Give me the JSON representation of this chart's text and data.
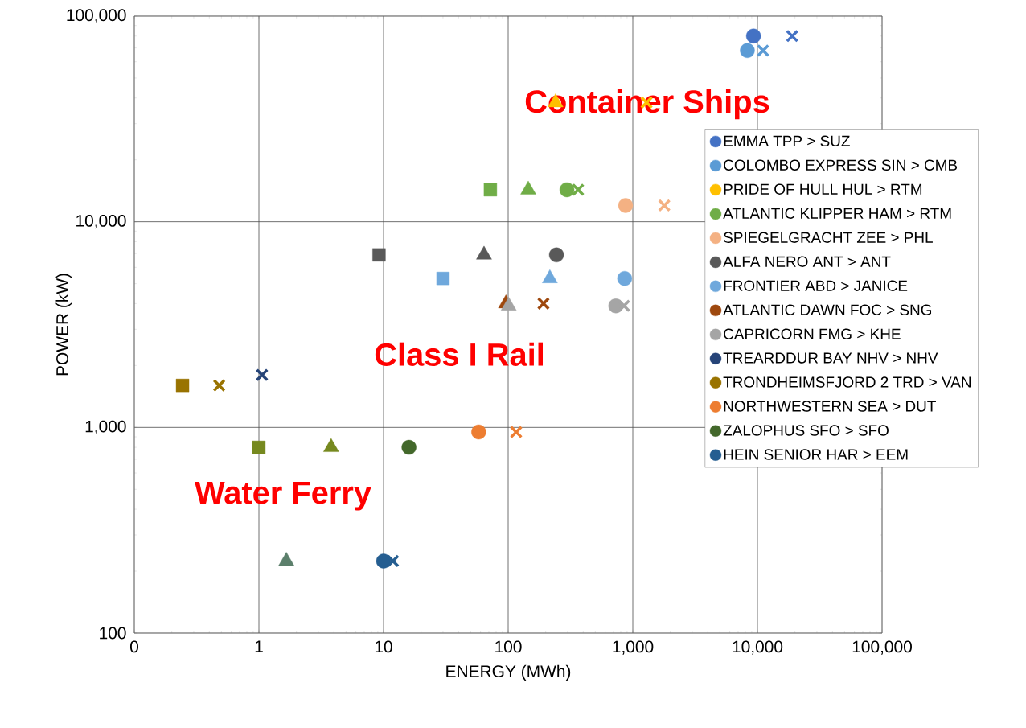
{
  "chart_data": {
    "type": "scatter",
    "xlabel": "ENERGY (MWh)",
    "ylabel": "POWER (kW)",
    "log": "xy",
    "grid": true,
    "legend": "right",
    "xlim": [
      0.1,
      100000
    ],
    "ylim": [
      100,
      100000
    ],
    "xticks": [
      {
        "value": 0.1,
        "label": "0"
      },
      1,
      10,
      100,
      {
        "value": 1000,
        "label": "1,000"
      },
      {
        "value": 10000,
        "label": "10,000"
      },
      {
        "value": 100000,
        "label": "100,000"
      }
    ],
    "yticks": [
      100,
      {
        "value": 1000,
        "label": "1,000"
      },
      {
        "value": 10000,
        "label": "10,000"
      },
      {
        "value": 100000,
        "label": "100,000"
      }
    ],
    "series": [
      {
        "name": "EMMA TPP > SUZ",
        "color": "#4472c4",
        "marker": "circle",
        "x": [
          9300
        ],
        "values": [
          80000
        ]
      },
      {
        "name": "COLOMBO EXPRESS SIN > CMB",
        "color": "#5b9bd5",
        "marker": "circle",
        "x": [
          8300
        ],
        "values": [
          68000
        ]
      },
      {
        "name": "PRIDE OF HULL HUL > RTM",
        "color": "#ffc000",
        "marker": "triangle",
        "x": [
          240
        ],
        "values": [
          38000
        ]
      },
      {
        "name": "ATLANTIC KLIPPER HAM > RTM",
        "color": "#70ad47",
        "marker": "circle",
        "x": [
          296
        ],
        "values": [
          14300
        ]
      },
      {
        "name": "SPIEGELGRACHT ZEE > PHL",
        "color": "#f4b183",
        "marker": "circle",
        "x": [
          875
        ],
        "values": [
          12000
        ]
      },
      {
        "name": "ALFA NERO ANT > ANT",
        "color": "#595959",
        "marker": "circle",
        "x": [
          244
        ],
        "values": [
          6900
        ]
      },
      {
        "name": "FRONTIER ABD > JANICE",
        "color": "#6fa8dc",
        "marker": "circle",
        "x": [
          860
        ],
        "values": [
          5300
        ]
      },
      {
        "name": "ATLANTIC DAWN FOC > SNG",
        "color": "#9e480e",
        "marker": "triangle",
        "x": [
          96
        ],
        "values": [
          4000
        ]
      },
      {
        "name": "CAPRICORN FMG > KHE",
        "color": "#a5a5a5",
        "marker": "circle",
        "x": [
          730
        ],
        "values": [
          3900
        ]
      },
      {
        "name": "TREARDDUR BAY NHV > NHV",
        "color": "#264478",
        "marker": "cross",
        "x": [
          1.06
        ],
        "values": [
          1800
        ]
      },
      {
        "name": "TRONDHEIMSFJORD 2 TRD > VAN",
        "color": "#997300",
        "marker": "square",
        "x": [
          0.244
        ],
        "values": [
          1600
        ]
      },
      {
        "name": "NORTHWESTERN SEA > DUT",
        "color": "#ed7d31",
        "marker": "circle",
        "x": [
          58
        ],
        "values": [
          950
        ]
      },
      {
        "name": "ZALOPHUS SFO > SFO",
        "color": "#43682b",
        "marker": "circle",
        "x": [
          16
        ],
        "values": [
          800
        ]
      },
      {
        "name": "HEIN SENIOR  HAR > EEM",
        "color": "#255e91",
        "marker": "circle",
        "x": [
          10
        ],
        "values": [
          224
        ]
      },
      {
        "color": "#4472c4",
        "marker": "cross",
        "x": [
          19000
        ],
        "values": [
          80000
        ]
      },
      {
        "color": "#5b9bd5",
        "marker": "cross",
        "x": [
          11100
        ],
        "values": [
          68000
        ]
      },
      {
        "color": "#ffc000",
        "marker": "cross",
        "x": [
          1290
        ],
        "values": [
          38000
        ]
      },
      {
        "color": "#70ad47",
        "marker": "square",
        "x": [
          72
        ],
        "values": [
          14300
        ]
      },
      {
        "color": "#70ad47",
        "marker": "triangle",
        "x": [
          145
        ],
        "values": [
          14300
        ]
      },
      {
        "color": "#70ad47",
        "marker": "cross",
        "x": [
          364
        ],
        "values": [
          14300
        ]
      },
      {
        "color": "#f4b183",
        "marker": "cross",
        "x": [
          1790
        ],
        "values": [
          12000
        ]
      },
      {
        "color": "#595959",
        "marker": "square",
        "x": [
          9.2
        ],
        "values": [
          6900
        ]
      },
      {
        "color": "#595959",
        "marker": "triangle",
        "x": [
          64
        ],
        "values": [
          6900
        ]
      },
      {
        "color": "#6fa8dc",
        "marker": "square",
        "x": [
          30
        ],
        "values": [
          5300
        ]
      },
      {
        "color": "#6fa8dc",
        "marker": "triangle",
        "x": [
          216
        ],
        "values": [
          5300
        ]
      },
      {
        "color": "#9e480e",
        "marker": "cross",
        "x": [
          192
        ],
        "values": [
          4000
        ]
      },
      {
        "color": "#a5a5a5",
        "marker": "cross",
        "x": [
          850
        ],
        "values": [
          3900
        ]
      },
      {
        "color": "#a5a5a5",
        "marker": "triangle",
        "x": [
          101
        ],
        "values": [
          3900
        ]
      },
      {
        "color": "#997300",
        "marker": "cross",
        "x": [
          0.48
        ],
        "values": [
          1600
        ]
      },
      {
        "color": "#ed7d31",
        "marker": "cross",
        "x": [
          116
        ],
        "values": [
          950
        ]
      },
      {
        "color": "#255e91",
        "marker": "cross",
        "x": [
          11.9
        ],
        "values": [
          224
        ]
      },
      {
        "color": "#76891f",
        "marker": "square",
        "x": [
          1.0
        ],
        "values": [
          800
        ]
      },
      {
        "color": "#76891f",
        "marker": "triangle",
        "x": [
          3.8
        ],
        "values": [
          800
        ]
      },
      {
        "color": "#5b7f6b",
        "marker": "triangle",
        "x": [
          1.66
        ],
        "values": [
          224
        ]
      }
    ],
    "annotations": [
      "Container Ships",
      "Class I Rail",
      "Water Ferry"
    ]
  }
}
